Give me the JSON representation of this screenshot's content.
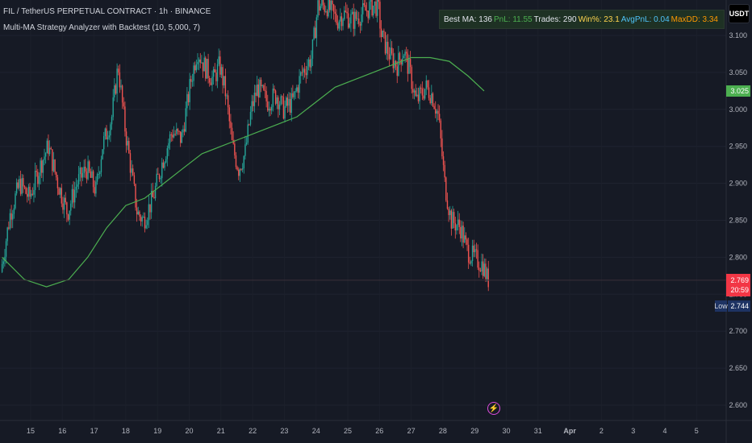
{
  "legend": {
    "symbol_title": "FIL / TetherUS PERPETUAL CONTRACT · 1h · BINANCE",
    "indicator_title": "Multi-MA Strategy Analyzer with Backtest (10, 5,000, 7)"
  },
  "stats": {
    "best_ma": "Best MA: 136",
    "pnl": "PnL: 11.55",
    "trades": "Trades: 290",
    "winrate": "Win%: 23.1",
    "avgpnl": "AvgPnL: 0.04",
    "maxdd": "MaxDD: 3.34",
    "colors": {
      "best": "#e0e3eb",
      "pnl": "#4caf50",
      "trades": "#e0e3eb",
      "win": "#ffd54f",
      "avg": "#4fc3f7",
      "dd": "#ff9800"
    }
  },
  "currency_button": "USDT",
  "price_tags": {
    "ma_value": "3.025",
    "current_price": "2.769",
    "countdown": "20:59",
    "low_label": "Low",
    "low_value": "2.744"
  },
  "colors": {
    "up": "#26a69a",
    "down": "#ef5350",
    "ma": "#4caf50",
    "bg": "#161a25"
  },
  "chart_data": {
    "type": "candlestick",
    "y_ticks": [
      "3.100",
      "3.050",
      "3.000",
      "2.950",
      "2.900",
      "2.850",
      "2.800",
      "2.750",
      "2.700",
      "2.650",
      "2.600"
    ],
    "x_ticks": [
      "15",
      "16",
      "17",
      "18",
      "19",
      "20",
      "21",
      "22",
      "23",
      "24",
      "25",
      "26",
      "27",
      "28",
      "29",
      "30",
      "31",
      "Apr",
      "2",
      "3",
      "4",
      "5"
    ],
    "ylim": [
      2.6,
      3.13
    ],
    "price_path": [
      [
        14.1,
        2.78
      ],
      [
        14.4,
        2.86
      ],
      [
        14.7,
        2.9
      ],
      [
        15.0,
        2.88
      ],
      [
        15.4,
        2.93
      ],
      [
        15.6,
        2.95
      ],
      [
        15.9,
        2.9
      ],
      [
        16.2,
        2.86
      ],
      [
        16.5,
        2.9
      ],
      [
        16.8,
        2.92
      ],
      [
        17.1,
        2.89
      ],
      [
        17.3,
        2.95
      ],
      [
        17.6,
        2.99
      ],
      [
        17.8,
        3.06
      ],
      [
        18.0,
        2.98
      ],
      [
        18.2,
        2.92
      ],
      [
        18.4,
        2.86
      ],
      [
        18.6,
        2.85
      ],
      [
        18.9,
        2.88
      ],
      [
        19.2,
        2.93
      ],
      [
        19.5,
        2.97
      ],
      [
        19.8,
        2.96
      ],
      [
        20.1,
        3.04
      ],
      [
        20.3,
        3.08
      ],
      [
        20.5,
        3.06
      ],
      [
        20.8,
        3.04
      ],
      [
        21.0,
        3.06
      ],
      [
        21.2,
        3.02
      ],
      [
        21.4,
        2.95
      ],
      [
        21.6,
        2.92
      ],
      [
        21.8,
        2.94
      ],
      [
        22.0,
        3.0
      ],
      [
        22.2,
        3.03
      ],
      [
        22.5,
        3.01
      ],
      [
        22.8,
        3.02
      ],
      [
        23.0,
        3.0
      ],
      [
        23.3,
        3.01
      ],
      [
        23.6,
        3.05
      ],
      [
        23.9,
        3.07
      ],
      [
        24.1,
        3.14
      ],
      [
        24.4,
        3.14
      ],
      [
        24.7,
        3.12
      ],
      [
        24.9,
        3.13
      ],
      [
        25.2,
        3.12
      ],
      [
        25.5,
        3.13
      ],
      [
        25.8,
        3.14
      ],
      [
        26.0,
        3.14
      ],
      [
        26.1,
        3.1
      ],
      [
        26.4,
        3.07
      ],
      [
        26.6,
        3.06
      ],
      [
        26.8,
        3.08
      ],
      [
        27.0,
        3.05
      ],
      [
        27.2,
        3.01
      ],
      [
        27.5,
        3.03
      ],
      [
        27.7,
        3.02
      ],
      [
        27.9,
        2.99
      ],
      [
        28.1,
        2.9
      ],
      [
        28.3,
        2.85
      ],
      [
        28.6,
        2.84
      ],
      [
        28.8,
        2.81
      ],
      [
        29.0,
        2.8
      ],
      [
        29.3,
        2.79
      ],
      [
        29.45,
        2.77
      ]
    ],
    "ma_path": [
      [
        14.1,
        2.8
      ],
      [
        14.8,
        2.77
      ],
      [
        15.5,
        2.76
      ],
      [
        16.2,
        2.77
      ],
      [
        16.8,
        2.8
      ],
      [
        17.4,
        2.84
      ],
      [
        18.0,
        2.87
      ],
      [
        18.6,
        2.88
      ],
      [
        19.2,
        2.9
      ],
      [
        19.8,
        2.92
      ],
      [
        20.4,
        2.94
      ],
      [
        21.0,
        2.95
      ],
      [
        21.6,
        2.96
      ],
      [
        22.2,
        2.97
      ],
      [
        22.8,
        2.98
      ],
      [
        23.4,
        2.99
      ],
      [
        24.0,
        3.01
      ],
      [
        24.6,
        3.03
      ],
      [
        25.2,
        3.04
      ],
      [
        25.8,
        3.05
      ],
      [
        26.4,
        3.06
      ],
      [
        27.0,
        3.07
      ],
      [
        27.6,
        3.07
      ],
      [
        28.2,
        3.065
      ],
      [
        28.8,
        3.045
      ],
      [
        29.3,
        3.025
      ]
    ]
  }
}
